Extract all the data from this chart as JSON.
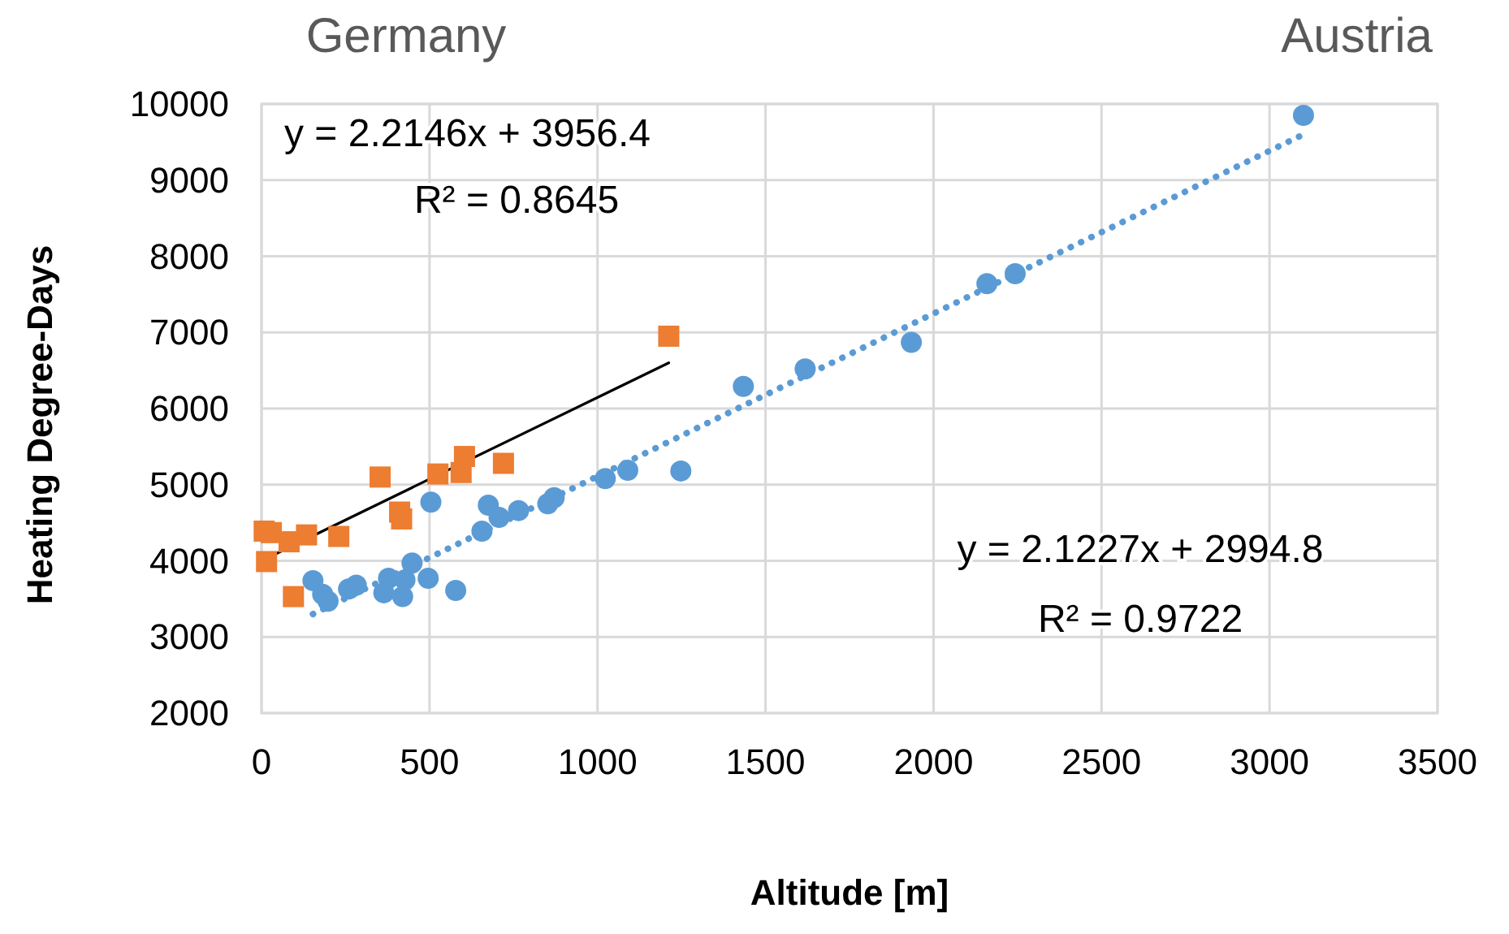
{
  "chart_data": {
    "type": "scatter",
    "xlabel": "Altitude [m]",
    "ylabel": "Heating Degree-Days",
    "xlim": [
      0,
      3500
    ],
    "xticks": [
      0,
      500,
      1000,
      1500,
      2000,
      2500,
      3000,
      3500
    ],
    "ylim": [
      2000,
      10000
    ],
    "yticks": [
      2000,
      3000,
      4000,
      5000,
      6000,
      7000,
      8000,
      9000,
      10000
    ],
    "grid": true,
    "annotations": [
      "Germany",
      "Austria",
      "y = 2.2146x + 3956.4",
      "R² = 0.8645",
      "y = 2.1227x + 2994.8",
      "R² = 0.9722"
    ],
    "series": [
      {
        "type": "line",
        "color": "#5b9bd5",
        "line_style": "dotted",
        "x": [
          153,
          3101
        ],
        "values": [
          3300,
          9600
        ]
      },
      {
        "type": "line",
        "color": "#000000",
        "line_style": "solid",
        "x": [
          0,
          1212
        ],
        "values": [
          4000,
          6600
        ]
      },
      {
        "color": "#5b9bd5",
        "marker": "circle",
        "x": [
          153,
          182,
          198,
          259,
          282,
          364,
          378,
          420,
          427,
          448,
          496,
          578,
          504,
          656,
          675,
          707,
          765,
          852,
          871,
          1023,
          1090,
          1248,
          1434,
          1618,
          1934,
          2159,
          2243,
          3101
        ],
        "values": [
          3740,
          3560,
          3470,
          3630,
          3680,
          3580,
          3770,
          3530,
          3750,
          3970,
          3770,
          3610,
          4770,
          4390,
          4730,
          4570,
          4660,
          4750,
          4830,
          5080,
          5190,
          5180,
          6290,
          6520,
          6870,
          7640,
          7770,
          9850
        ]
      },
      {
        "color": "#ed7d31",
        "marker": "square",
        "x": [
          8,
          29,
          82,
          134,
          230,
          15,
          95,
          353,
          411,
          417,
          525,
          594,
          604,
          720,
          1212
        ],
        "values": [
          4390,
          4370,
          4250,
          4340,
          4320,
          3990,
          3530,
          5100,
          4640,
          4550,
          5140,
          5160,
          5370,
          5280,
          6950
        ]
      }
    ]
  }
}
